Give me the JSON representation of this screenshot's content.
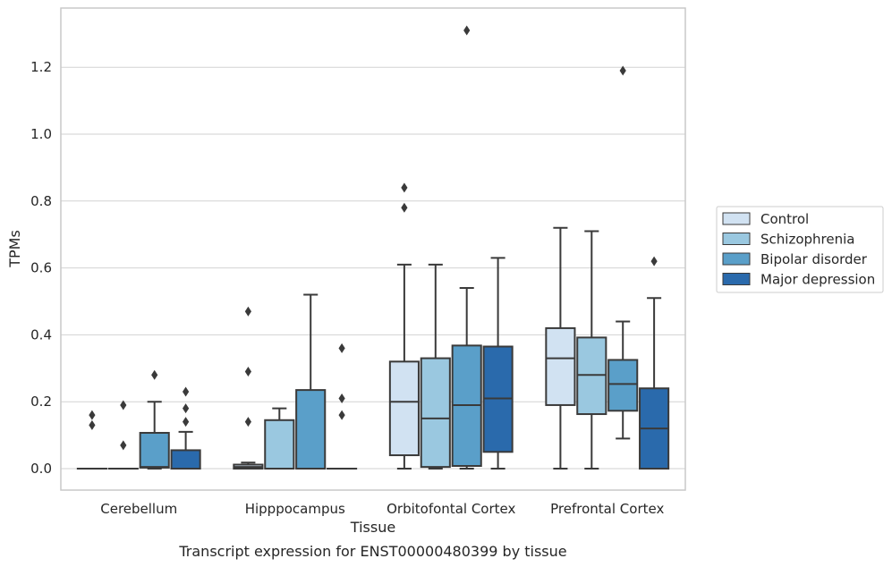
{
  "chart_data": {
    "type": "box",
    "title": "",
    "caption": "Transcript expression for ENST00000480399 by tissue",
    "xlabel": "Tissue",
    "ylabel": "TPMs",
    "ylim": [
      -0.065,
      1.38
    ],
    "yticks": [
      "0.0",
      "0.2",
      "0.4",
      "0.6",
      "0.8",
      "1.0",
      "1.2"
    ],
    "grid": true,
    "legend_position": "right",
    "categories": [
      "Cerebellum",
      "Hipppocampus",
      "Orbitofontal Cortex",
      "Prefrontal Cortex"
    ],
    "series": [
      {
        "name": "Control",
        "color": "#d1e2f2",
        "boxes": [
          {
            "whislo": 0,
            "q1": 0,
            "med": 0,
            "q3": 0,
            "whishi": 0,
            "fliers": [
              0.13,
              0.16
            ]
          },
          {
            "whislo": 0,
            "q1": 0,
            "med": 0.005,
            "q3": 0.012,
            "whishi": 0.018,
            "fliers": [
              0.14,
              0.29,
              0.47
            ]
          },
          {
            "whislo": 0,
            "q1": 0.04,
            "med": 0.2,
            "q3": 0.32,
            "whishi": 0.61,
            "fliers": [
              0.78,
              0.84
            ]
          },
          {
            "whislo": 0,
            "q1": 0.19,
            "med": 0.33,
            "q3": 0.42,
            "whishi": 0.72,
            "fliers": []
          }
        ]
      },
      {
        "name": "Schizophrenia",
        "color": "#9ac8e0",
        "boxes": [
          {
            "whislo": 0,
            "q1": 0,
            "med": 0,
            "q3": 0,
            "whishi": 0,
            "fliers": [
              0.07,
              0.19
            ]
          },
          {
            "whislo": 0,
            "q1": 0,
            "med": 0,
            "q3": 0.145,
            "whishi": 0.18,
            "fliers": []
          },
          {
            "whislo": 0,
            "q1": 0.005,
            "med": 0.15,
            "q3": 0.33,
            "whishi": 0.61,
            "fliers": []
          },
          {
            "whislo": 0,
            "q1": 0.163,
            "med": 0.28,
            "q3": 0.392,
            "whishi": 0.71,
            "fliers": []
          }
        ]
      },
      {
        "name": "Bipolar disorder",
        "color": "#5a9fc9",
        "boxes": [
          {
            "whislo": 0,
            "q1": 0.003,
            "med": 0.005,
            "q3": 0.107,
            "whishi": 0.2,
            "fliers": [
              0.28
            ]
          },
          {
            "whislo": 0,
            "q1": 0,
            "med": 0,
            "q3": 0.235,
            "whishi": 0.52,
            "fliers": []
          },
          {
            "whislo": 0,
            "q1": 0.008,
            "med": 0.19,
            "q3": 0.368,
            "whishi": 0.54,
            "fliers": [
              1.31
            ]
          },
          {
            "whislo": 0.09,
            "q1": 0.173,
            "med": 0.253,
            "q3": 0.325,
            "whishi": 0.44,
            "fliers": [
              1.19
            ]
          }
        ]
      },
      {
        "name": "Major depression",
        "color": "#2a6aac",
        "boxes": [
          {
            "whislo": 0,
            "q1": 0,
            "med": 0,
            "q3": 0.055,
            "whishi": 0.11,
            "fliers": [
              0.14,
              0.18,
              0.23
            ]
          },
          {
            "whislo": 0,
            "q1": 0,
            "med": 0,
            "q3": 0,
            "whishi": 0,
            "fliers": [
              0.16,
              0.21,
              0.36
            ]
          },
          {
            "whislo": 0,
            "q1": 0.05,
            "med": 0.21,
            "q3": 0.365,
            "whishi": 0.63,
            "fliers": []
          },
          {
            "whislo": 0,
            "q1": 0,
            "med": 0.12,
            "q3": 0.24,
            "whishi": 0.51,
            "fliers": [
              0.62
            ]
          }
        ]
      }
    ]
  }
}
